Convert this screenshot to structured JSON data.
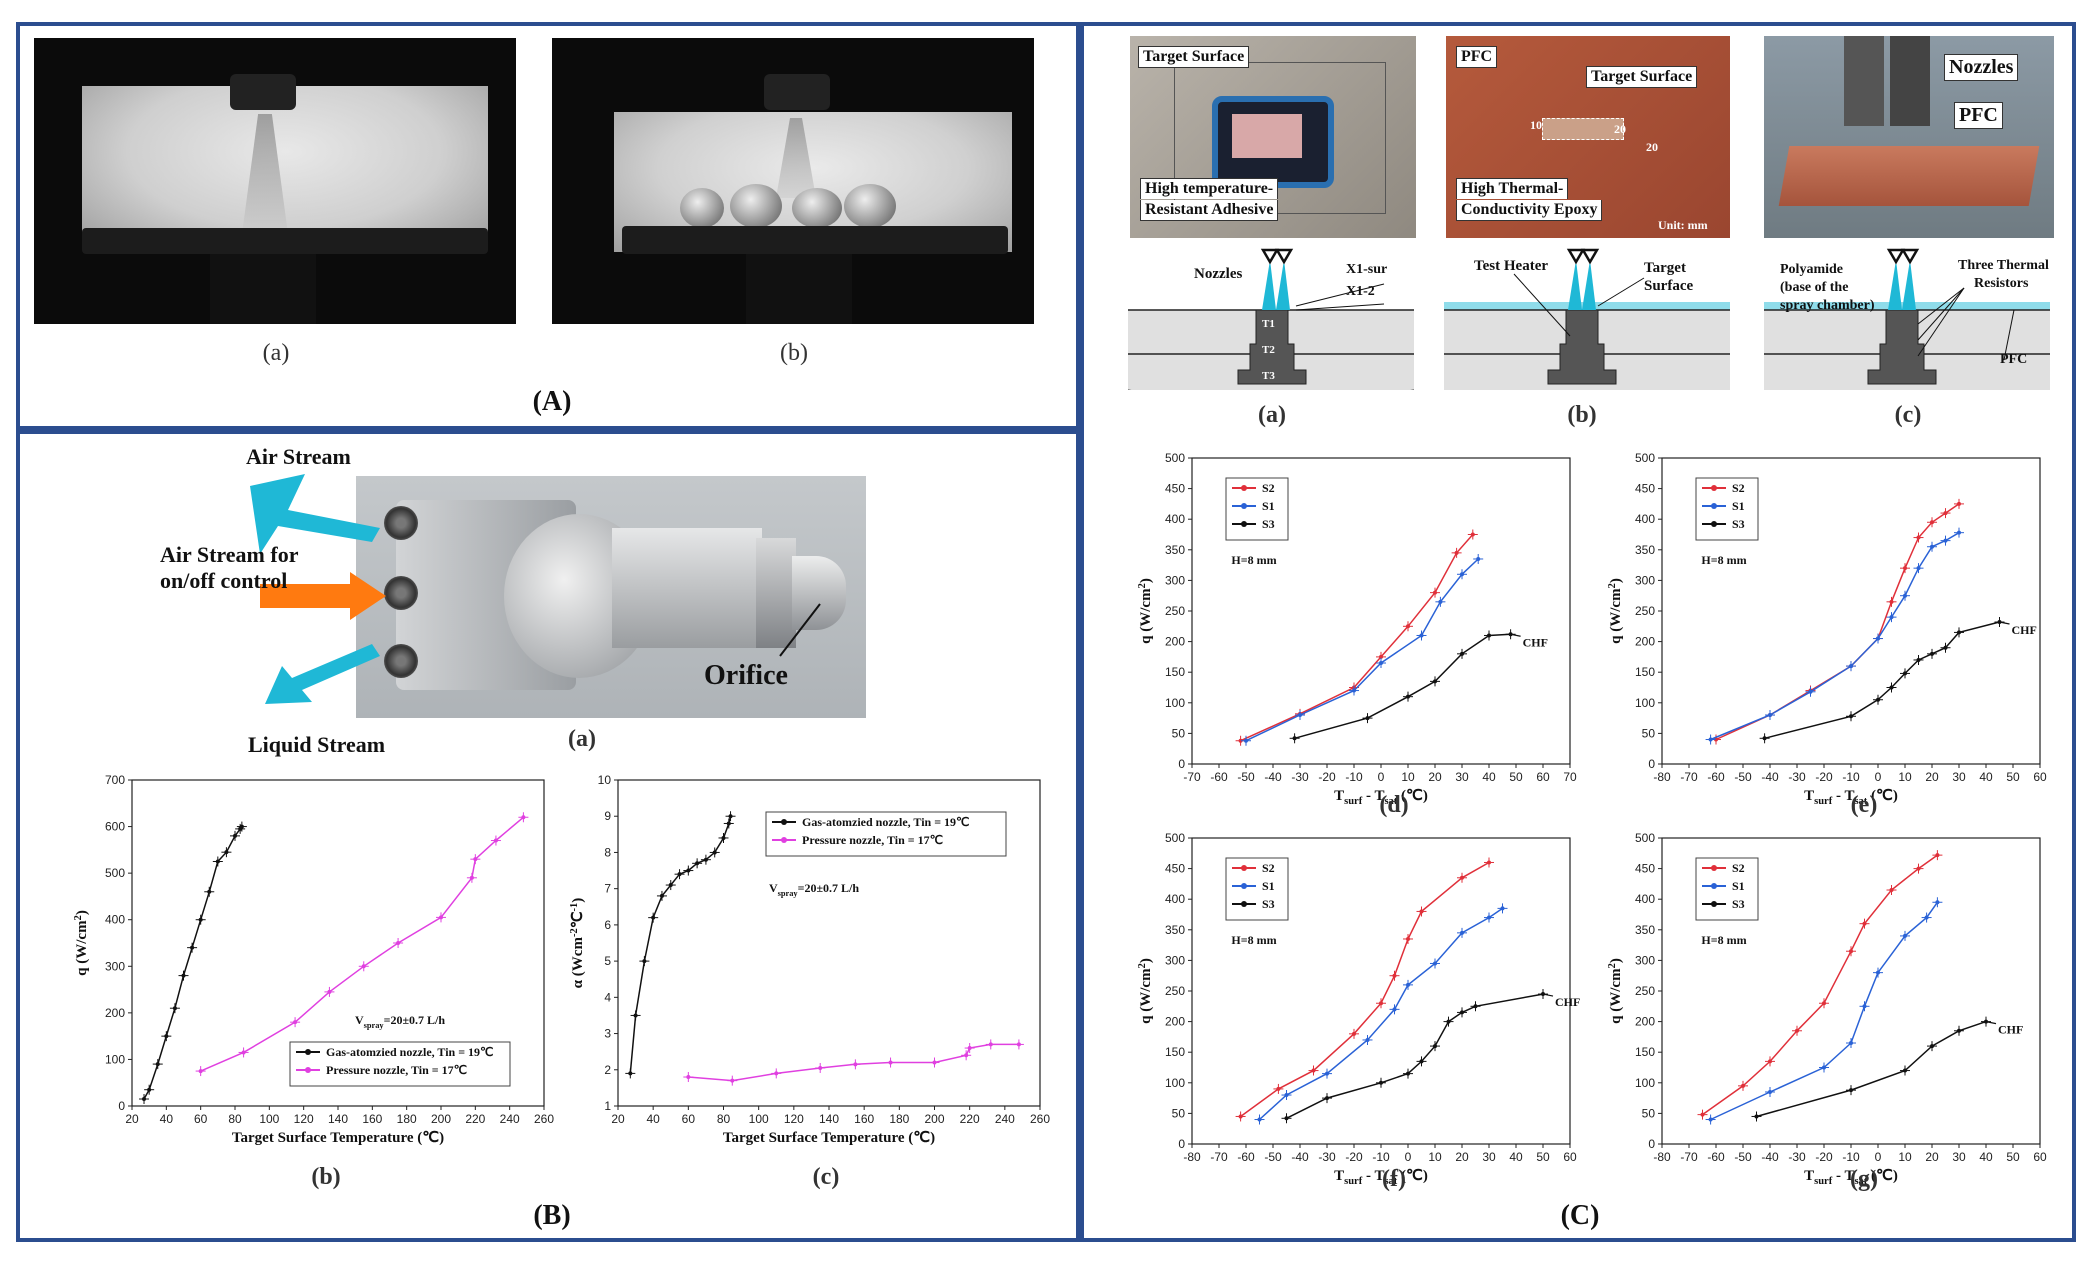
{
  "panels": {
    "A": "(A)",
    "B": "(B)",
    "C": "(C)"
  },
  "panelA": {
    "cap_a": "(a)",
    "cap_b": "(b)"
  },
  "panelB": {
    "photo": {
      "air_stream": "Air Stream",
      "air_onoff_line1": "Air Stream for",
      "air_onoff_line2": "on/off control",
      "liquid": "Liquid Stream",
      "orifice": "Orifice",
      "cap": "(a)"
    },
    "cap_b": "(b)",
    "cap_c": "(c)"
  },
  "panelC": {
    "photo_a": {
      "target": "Target Surface",
      "adhesive_line1": "High temperature-",
      "adhesive_line2": "Resistant Adhesive"
    },
    "photo_b": {
      "pfc": "PFC",
      "target": "Target Surface",
      "epoxy_line1": "High Thermal-",
      "epoxy_line2": "Conductivity Epoxy",
      "dim_a": "10",
      "dim_b": "20",
      "dim_c": "20",
      "unit": "Unit: mm"
    },
    "photo_c": {
      "nozzles": "Nozzles",
      "pfc": "PFC"
    },
    "diagram_a": {
      "nozzles": "Nozzles",
      "x1": "X1-sur",
      "x2": "X1-2",
      "t1": "T1",
      "t2": "T2",
      "t3": "T3",
      "cap": "(a)"
    },
    "diagram_b": {
      "heater": "Test Heater",
      "target_line1": "Target",
      "target_line2": "Surface",
      "cap": "(b)"
    },
    "diagram_c": {
      "poly_line1": "Polyamide",
      "poly_line2": "(base of the",
      "poly_line3": "spray chamber)",
      "resistors_line1": "Three Thermal",
      "resistors_line2": "Resistors",
      "pfc": "PFC",
      "cap": "(c)"
    },
    "cap_d": "(d)",
    "cap_e": "(e)",
    "cap_f": "(f)",
    "cap_g": "(g)"
  },
  "colors": {
    "frame": "#2b4d8f",
    "red": "#e0303a",
    "blue": "#2a62d6",
    "black": "#111111",
    "magenta": "#e040e0",
    "teal": "#1fb8d6",
    "orange": "#ff7a10"
  },
  "chart_data": [
    {
      "id": "Bb",
      "type": "line",
      "xlabel": "Target Surface Temperature (℃)",
      "ylabel": "q (W/cm2)",
      "xlim": [
        20,
        260
      ],
      "ylim": [
        0,
        700
      ],
      "xticks": [
        20,
        40,
        60,
        80,
        100,
        120,
        140,
        160,
        180,
        200,
        220,
        240,
        260
      ],
      "yticks": [
        0,
        100,
        200,
        300,
        400,
        500,
        600,
        700
      ],
      "annotation": "Vspray=20±0.7 L/h",
      "legend_position": "bottom-right",
      "series": [
        {
          "name": "Gas-atomzied nozzle, Tin = 19℃",
          "color": "#111111",
          "x": [
            27,
            30,
            35,
            40,
            45,
            50,
            55,
            60,
            65,
            70,
            75,
            80,
            83,
            84
          ],
          "y": [
            15,
            35,
            90,
            150,
            210,
            280,
            340,
            400,
            460,
            525,
            545,
            580,
            595,
            600
          ]
        },
        {
          "name": "Pressure nozzle, Tin = 17℃",
          "color": "#e040e0",
          "x": [
            60,
            85,
            115,
            135,
            155,
            175,
            200,
            218,
            220,
            232,
            248
          ],
          "y": [
            75,
            115,
            180,
            245,
            300,
            350,
            405,
            490,
            530,
            570,
            620
          ]
        }
      ]
    },
    {
      "id": "Bc",
      "type": "line",
      "xlabel": "Target Surface Temperature (℃)",
      "ylabel": "α (Wcm-2℃-1)",
      "xlim": [
        20,
        260
      ],
      "ylim": [
        1,
        10
      ],
      "xticks": [
        20,
        40,
        60,
        80,
        100,
        120,
        140,
        160,
        180,
        200,
        220,
        240,
        260
      ],
      "yticks": [
        1,
        2,
        3,
        4,
        5,
        6,
        7,
        8,
        9,
        10
      ],
      "annotation": "Vspray=20±0.7 L/h",
      "legend_position": "top-right",
      "series": [
        {
          "name": "Gas-atomzied nozzle, Tin = 19℃",
          "color": "#111111",
          "x": [
            27,
            30,
            35,
            40,
            45,
            50,
            55,
            60,
            65,
            70,
            75,
            80,
            83,
            84
          ],
          "y": [
            1.9,
            3.5,
            5.0,
            6.2,
            6.8,
            7.1,
            7.4,
            7.5,
            7.7,
            7.8,
            8.0,
            8.4,
            8.8,
            9.0
          ]
        },
        {
          "name": "Pressure nozzle, Tin = 17℃",
          "color": "#e040e0",
          "x": [
            60,
            85,
            110,
            135,
            155,
            175,
            200,
            218,
            220,
            232,
            248
          ],
          "y": [
            1.8,
            1.7,
            1.9,
            2.05,
            2.15,
            2.2,
            2.2,
            2.4,
            2.6,
            2.7,
            2.7
          ]
        }
      ]
    },
    {
      "id": "Cd",
      "type": "line",
      "xlabel": "Tsurf - Tsat (℃)",
      "ylabel": "q (W/cm2)",
      "xlim": [
        -70,
        70
      ],
      "ylim": [
        0,
        500
      ],
      "xticks": [
        -70,
        -60,
        -50,
        -40,
        -30,
        -20,
        -10,
        0,
        10,
        20,
        30,
        40,
        50,
        60,
        70
      ],
      "yticks": [
        0,
        50,
        100,
        150,
        200,
        250,
        300,
        350,
        400,
        450,
        500
      ],
      "annotation": "H=8 mm",
      "end_label": "CHF",
      "legend_position": "top-left",
      "series": [
        {
          "name": "S2",
          "color": "#e0303a",
          "x": [
            -52,
            -30,
            -10,
            0,
            10,
            20,
            28,
            34
          ],
          "y": [
            38,
            82,
            125,
            175,
            225,
            280,
            345,
            375
          ]
        },
        {
          "name": "S1",
          "color": "#2a62d6",
          "x": [
            -50,
            -30,
            -10,
            0,
            15,
            22,
            30,
            36
          ],
          "y": [
            38,
            80,
            120,
            165,
            210,
            265,
            310,
            335
          ]
        },
        {
          "name": "S3",
          "color": "#111111",
          "x": [
            -32,
            -5,
            10,
            20,
            30,
            40,
            48
          ],
          "y": [
            42,
            75,
            110,
            135,
            180,
            210,
            212
          ]
        }
      ]
    },
    {
      "id": "Ce",
      "type": "line",
      "xlabel": "Tsurf - Tsat (℃)",
      "ylabel": "q (W/cm2)",
      "xlim": [
        -80,
        60
      ],
      "ylim": [
        0,
        500
      ],
      "xticks": [
        -80,
        -70,
        -60,
        -50,
        -40,
        -30,
        -20,
        -10,
        0,
        10,
        20,
        30,
        40,
        50,
        60
      ],
      "yticks": [
        0,
        50,
        100,
        150,
        200,
        250,
        300,
        350,
        400,
        450,
        500
      ],
      "annotation": "H=8 mm",
      "end_label": "CHF",
      "legend_position": "top-left",
      "series": [
        {
          "name": "S2",
          "color": "#e0303a",
          "x": [
            -60,
            -40,
            -25,
            -10,
            0,
            5,
            10,
            15,
            20,
            25,
            30
          ],
          "y": [
            40,
            80,
            120,
            160,
            205,
            265,
            320,
            370,
            395,
            410,
            425
          ]
        },
        {
          "name": "S1",
          "color": "#2a62d6",
          "x": [
            -62,
            -40,
            -25,
            -10,
            0,
            5,
            10,
            15,
            20,
            25,
            30
          ],
          "y": [
            40,
            80,
            118,
            160,
            205,
            240,
            275,
            320,
            355,
            365,
            378
          ]
        },
        {
          "name": "S3",
          "color": "#111111",
          "x": [
            -42,
            -10,
            0,
            5,
            10,
            15,
            20,
            25,
            30,
            45
          ],
          "y": [
            42,
            78,
            105,
            125,
            148,
            170,
            180,
            190,
            215,
            232
          ]
        }
      ]
    },
    {
      "id": "Cf",
      "type": "line",
      "xlabel": "Tsurf - Tsat (℃)",
      "ylabel": "q (W/cm2)",
      "xlim": [
        -80,
        60
      ],
      "ylim": [
        0,
        500
      ],
      "xticks": [
        -80,
        -70,
        -60,
        -50,
        -40,
        -30,
        -20,
        -10,
        0,
        10,
        20,
        30,
        40,
        50,
        60
      ],
      "yticks": [
        0,
        50,
        100,
        150,
        200,
        250,
        300,
        350,
        400,
        450,
        500
      ],
      "annotation": "H=8 mm",
      "end_label": "CHF",
      "legend_position": "top-left",
      "series": [
        {
          "name": "S2",
          "color": "#e0303a",
          "x": [
            -62,
            -48,
            -35,
            -20,
            -10,
            -5,
            0,
            5,
            20,
            30
          ],
          "y": [
            45,
            90,
            120,
            180,
            230,
            275,
            335,
            380,
            435,
            460
          ]
        },
        {
          "name": "S1",
          "color": "#2a62d6",
          "x": [
            -55,
            -45,
            -30,
            -15,
            -5,
            0,
            10,
            20,
            30,
            35
          ],
          "y": [
            40,
            80,
            115,
            170,
            220,
            260,
            295,
            345,
            370,
            385
          ]
        },
        {
          "name": "S3",
          "color": "#111111",
          "x": [
            -45,
            -30,
            -10,
            0,
            5,
            10,
            15,
            20,
            25,
            50
          ],
          "y": [
            42,
            75,
            100,
            115,
            135,
            160,
            200,
            215,
            225,
            245
          ]
        }
      ]
    },
    {
      "id": "Cg",
      "type": "line",
      "xlabel": "Tsurf - Tsat (℃)",
      "ylabel": "q (W/cm2)",
      "xlim": [
        -80,
        60
      ],
      "ylim": [
        0,
        500
      ],
      "xticks": [
        -80,
        -70,
        -60,
        -50,
        -40,
        -30,
        -20,
        -10,
        0,
        10,
        20,
        30,
        40,
        50,
        60
      ],
      "yticks": [
        0,
        50,
        100,
        150,
        200,
        250,
        300,
        350,
        400,
        450,
        500
      ],
      "annotation": "H=8 mm",
      "end_label": "CHF",
      "legend_position": "top-left",
      "series": [
        {
          "name": "S2",
          "color": "#e0303a",
          "x": [
            -65,
            -50,
            -40,
            -30,
            -20,
            -10,
            -5,
            5,
            15,
            22
          ],
          "y": [
            48,
            95,
            135,
            185,
            230,
            315,
            360,
            415,
            450,
            472
          ]
        },
        {
          "name": "S1",
          "color": "#2a62d6",
          "x": [
            -62,
            -40,
            -20,
            -10,
            -5,
            0,
            10,
            18,
            22
          ],
          "y": [
            40,
            85,
            125,
            165,
            225,
            280,
            340,
            370,
            395
          ]
        },
        {
          "name": "S3",
          "color": "#111111",
          "x": [
            -45,
            -10,
            10,
            20,
            30,
            40
          ],
          "y": [
            45,
            88,
            120,
            160,
            185,
            200
          ]
        }
      ]
    }
  ]
}
